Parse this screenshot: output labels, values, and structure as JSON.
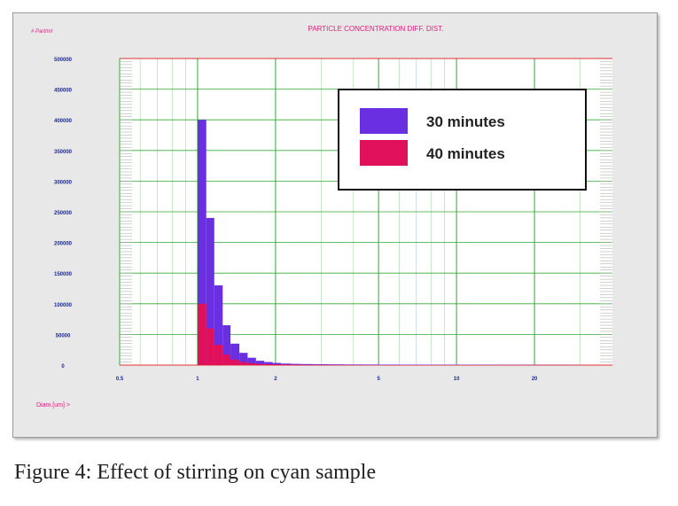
{
  "chart_data": {
    "type": "bar",
    "title": "PARTICLE CONCENTRATION DIFF. DIST.",
    "ylabel": "# Part/ml",
    "xlabel": "Diam.[um] >",
    "x_scale": "log",
    "xlim": [
      0.5,
      40
    ],
    "ylim": [
      0,
      500000
    ],
    "y_ticks": [
      {
        "value": 500000,
        "label": "500000"
      },
      {
        "value": 450000,
        "label": "450000"
      },
      {
        "value": 400000,
        "label": "400000"
      },
      {
        "value": 350000,
        "label": "350000"
      },
      {
        "value": 300000,
        "label": "300000"
      },
      {
        "value": 250000,
        "label": "250000"
      },
      {
        "value": 200000,
        "label": "200000"
      },
      {
        "value": 150000,
        "label": "150000"
      },
      {
        "value": 100000,
        "label": "100000"
      },
      {
        "value": 50000,
        "label": "50000"
      },
      {
        "value": 0,
        "label": "0"
      }
    ],
    "x_ticks": [
      {
        "value": 0.5,
        "label": "0.5"
      },
      {
        "value": 1,
        "label": "1"
      },
      {
        "value": 2,
        "label": "2"
      },
      {
        "value": 5,
        "label": "5"
      },
      {
        "value": 10,
        "label": "10"
      },
      {
        "value": 20,
        "label": "20"
      }
    ],
    "legend_position": "top-right",
    "grid": true,
    "bin_edges": [
      1.0,
      1.08,
      1.16,
      1.25,
      1.34,
      1.45,
      1.56,
      1.68,
      1.81,
      1.95,
      2.1,
      2.3,
      2.5,
      2.8,
      3.2,
      3.7,
      4.3,
      5.0,
      6.0,
      7.5,
      10.0,
      14.0,
      20.0,
      30.0
    ],
    "series": [
      {
        "name": "30 minutes",
        "color": "#6a2fe0",
        "values": [
          400000,
          240000,
          130000,
          65000,
          35000,
          20000,
          12000,
          7000,
          5000,
          3500,
          2500,
          2000,
          1700,
          1400,
          1200,
          1000,
          900,
          800,
          700,
          600,
          500,
          400,
          300
        ]
      },
      {
        "name": "40 minutes",
        "color": "#e0105a",
        "values": [
          100000,
          60000,
          33000,
          17000,
          9000,
          5000,
          3000,
          2000,
          1500,
          1200,
          900,
          700,
          500,
          400,
          300,
          250,
          200,
          150,
          100,
          80,
          60,
          50,
          40
        ]
      }
    ]
  },
  "caption": "Figure 4: Effect of stirring on cyan sample",
  "colors": {
    "title": "#e0207a",
    "grid": "#33aa33",
    "plot_bg": "#ffffff",
    "panel_bg": "#e8e8e8"
  }
}
